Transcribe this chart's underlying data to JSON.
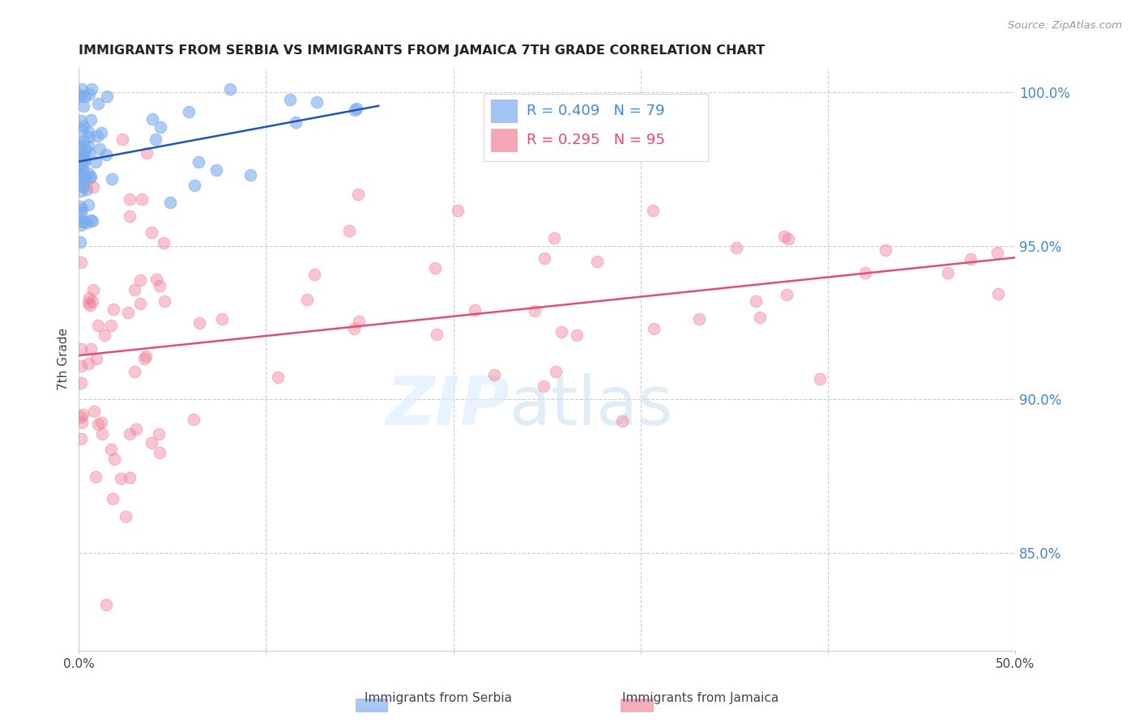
{
  "title": "IMMIGRANTS FROM SERBIA VS IMMIGRANTS FROM JAMAICA 7TH GRADE CORRELATION CHART",
  "source": "Source: ZipAtlas.com",
  "ylabel": "7th Grade",
  "serbia_R": 0.409,
  "serbia_N": 79,
  "jamaica_R": 0.295,
  "jamaica_N": 95,
  "serbia_color": "#7aacee",
  "jamaica_color": "#f08098",
  "serbia_line_color": "#2255bb",
  "jamaica_line_color": "#e05070",
  "legend_serbia_color": "#4488dd",
  "legend_jamaica_color": "#ee4477",
  "ytick_color": "#4488cc",
  "xlim": [
    0.0,
    0.5
  ],
  "ylim": [
    0.818,
    1.008
  ],
  "yticks": [
    0.85,
    0.9,
    0.95,
    1.0
  ],
  "ytick_labels": [
    "85.0%",
    "90.0%",
    "95.0%",
    "100.0%"
  ],
  "xtick_positions": [
    0.0,
    0.1,
    0.2,
    0.3,
    0.4,
    0.5
  ],
  "xtick_labels": [
    "0.0%",
    "",
    "",
    "",
    "",
    "50.0%"
  ]
}
